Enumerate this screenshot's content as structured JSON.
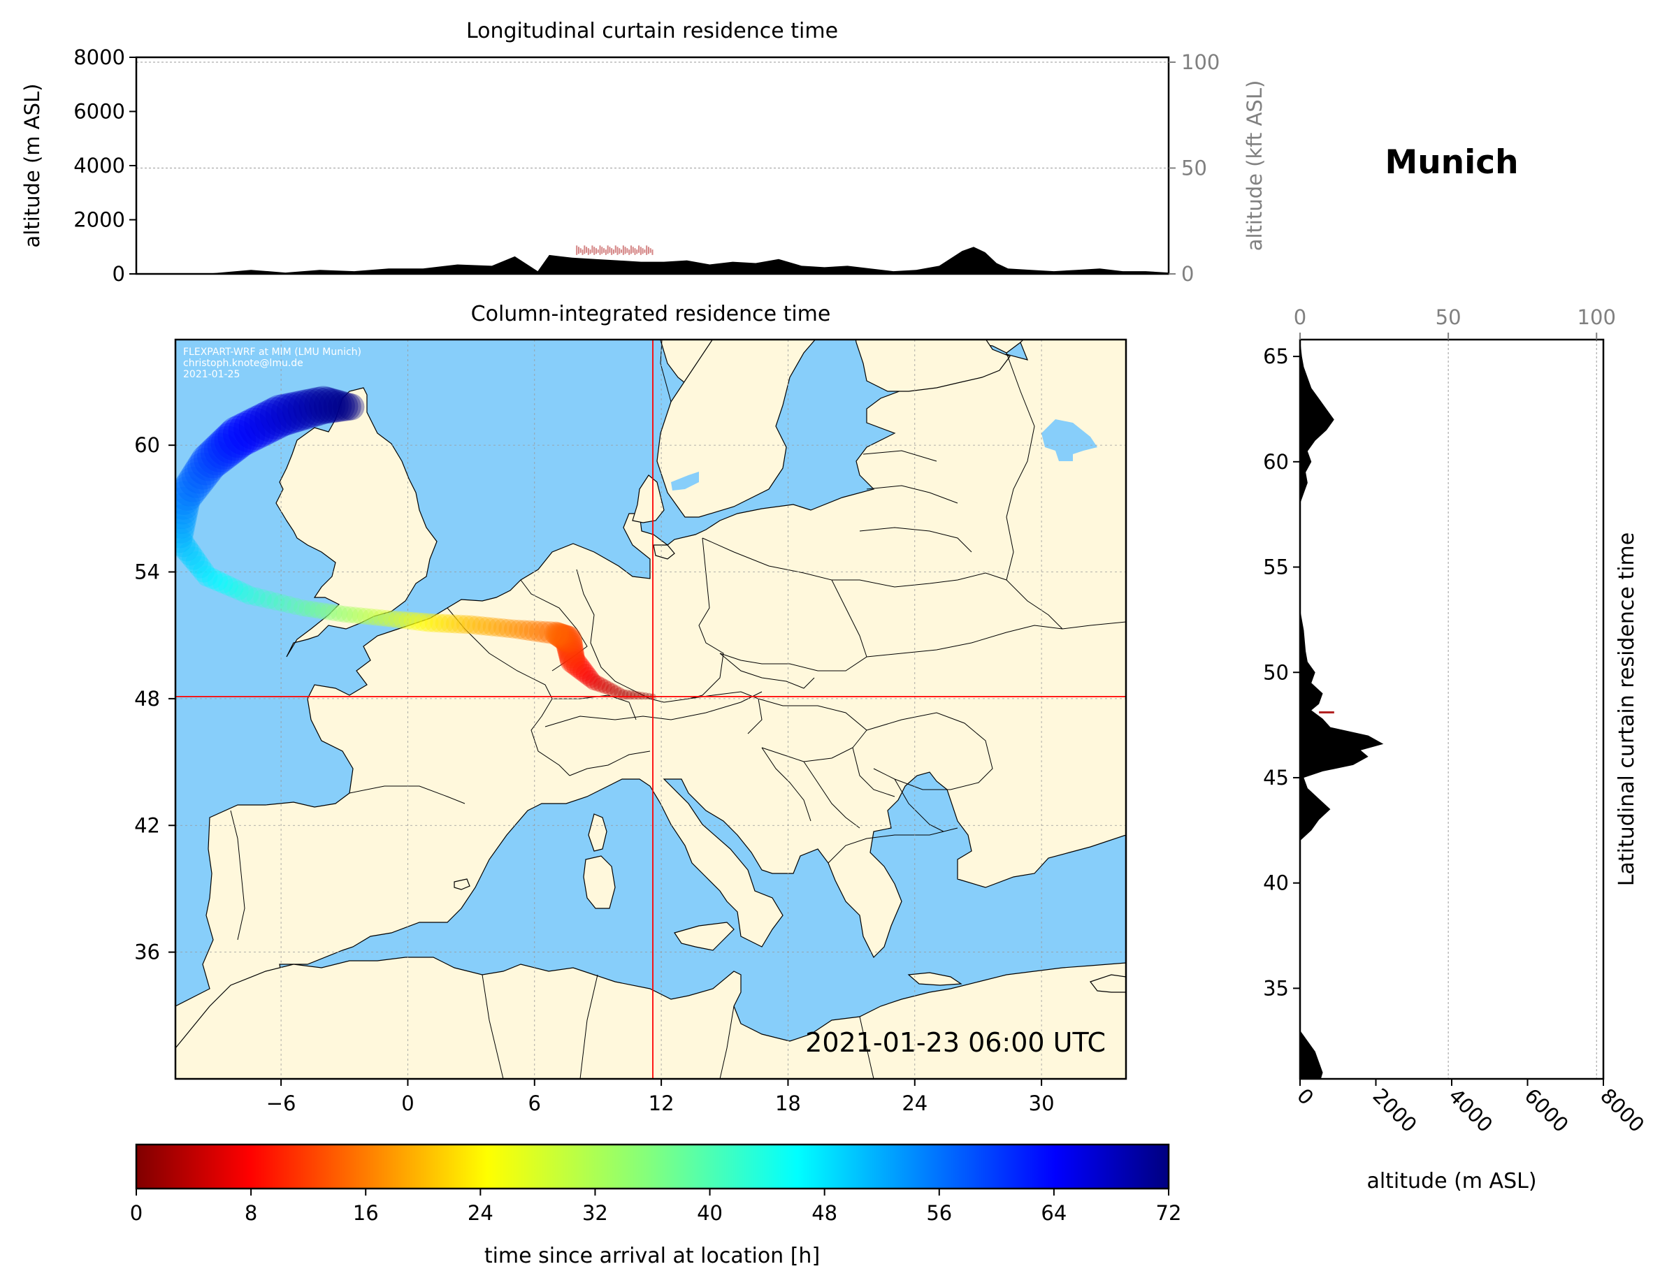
{
  "figure": {
    "location_title": "Munich",
    "timestamp": "2021-01-23 06:00 UTC",
    "credits": [
      "FLEXPART-WRF at MIM (LMU Munich)",
      "christoph.knote@lmu.de",
      "2021-01-25"
    ],
    "colors": {
      "ocean": "#87CEFA",
      "land": "#FFF8DC",
      "terrain": "#000000",
      "crosshair": "#FF0000",
      "secondary_axis": "#808080"
    }
  },
  "chart_data": [
    {
      "id": "longitudinal",
      "type": "area",
      "title": "Longitudinal curtain residence time",
      "ylabel": "altitude (m ASL)",
      "ylabel_right": "altitude (kft ASL)",
      "ylim": [
        0,
        8000
      ],
      "yticks": [
        0,
        2000,
        4000,
        6000,
        8000
      ],
      "yticks_right": [
        0,
        50,
        100
      ],
      "xlim": [
        -11,
        34
      ],
      "terrain": {
        "name": "terrain",
        "x": [
          -11,
          -8,
          -6,
          -4.5,
          -3,
          -1.5,
          0,
          1.5,
          3,
          4.5,
          5.5,
          6.5,
          7,
          7.5,
          8,
          9,
          10,
          11,
          12,
          13,
          14,
          15,
          16,
          17,
          18,
          19,
          20,
          21,
          22,
          23,
          24,
          25,
          25.5,
          26,
          26.5,
          27,
          28,
          29,
          30,
          31,
          32,
          33,
          34
        ],
        "y": [
          0,
          0,
          150,
          50,
          150,
          100,
          200,
          200,
          350,
          300,
          650,
          100,
          700,
          650,
          600,
          550,
          500,
          450,
          450,
          500,
          350,
          450,
          400,
          550,
          300,
          250,
          300,
          200,
          100,
          150,
          300,
          850,
          1000,
          800,
          400,
          200,
          150,
          100,
          150,
          200,
          100,
          100,
          50
        ]
      },
      "residence": {
        "name": "residence time",
        "x_range": [
          8.2,
          11.5
        ],
        "altitude_range": [
          700,
          1050
        ],
        "color": "#B22222"
      }
    },
    {
      "id": "column",
      "type": "heatmap",
      "title": "Column-integrated residence time",
      "xlim": [
        -11,
        34
      ],
      "ylim": [
        30,
        65
      ],
      "xticks": [
        -6,
        0,
        6,
        12,
        18,
        24,
        30
      ],
      "yticks": [
        36,
        42,
        48,
        54,
        60
      ],
      "crosshair": {
        "lon": 11.6,
        "lat": 48.1
      },
      "trajectory": {
        "lon": [
          11.6,
          10.2,
          8.8,
          7.8,
          7.6,
          7.0,
          5.0,
          3.0,
          1.0,
          -1.0,
          -3.0,
          -5.0,
          -7.5,
          -9.5,
          -10.8,
          -10.6,
          -9.4,
          -8.0,
          -6.0,
          -4.0,
          -2.5
        ],
        "lat": [
          48.1,
          48.2,
          48.8,
          49.8,
          50.8,
          51.1,
          51.3,
          51.5,
          51.6,
          51.8,
          52.0,
          52.3,
          52.9,
          53.8,
          55.5,
          57.5,
          59.2,
          60.4,
          61.4,
          61.9,
          61.8
        ],
        "hours": [
          0,
          3,
          7,
          11,
          14,
          16,
          19,
          22,
          26,
          30,
          34,
          38,
          42,
          46,
          50,
          54,
          58,
          62,
          66,
          70,
          72
        ],
        "width": [
          0.3,
          0.5,
          0.8,
          1.2,
          1.3,
          1.1,
          0.9,
          0.9,
          0.9,
          0.8,
          0.8,
          0.8,
          0.9,
          1.0,
          1.2,
          1.6,
          1.8,
          2.0,
          2.0,
          1.8,
          1.2
        ]
      }
    },
    {
      "id": "latitudinal",
      "type": "area",
      "title": "Latitudinal curtain residence time",
      "xlabel": "altitude (m ASL)",
      "xlim": [
        0,
        8000
      ],
      "xticks": [
        0,
        2000,
        4000,
        6000,
        8000
      ],
      "xticks_top": [
        0,
        50,
        100
      ],
      "ylim": [
        30.7,
        65.8
      ],
      "yticks": [
        35,
        40,
        45,
        50,
        55,
        60,
        65
      ],
      "terrain": {
        "name": "terrain",
        "lat": [
          30.7,
          31.0,
          31.5,
          32.0,
          32.5,
          33.0,
          35,
          37,
          40,
          42.0,
          42.5,
          43.0,
          43.5,
          44.0,
          44.5,
          45.0,
          45.3,
          45.6,
          46.0,
          46.3,
          46.6,
          47.0,
          47.4,
          47.8,
          48.2,
          48.5,
          49.0,
          49.5,
          50.0,
          50.5,
          51.0,
          52.0,
          52.5,
          53.0,
          55,
          57,
          58.0,
          58.5,
          59.0,
          59.5,
          60.0,
          60.5,
          61.0,
          61.5,
          62.0,
          62.5,
          63.0,
          63.5,
          64.0,
          64.5,
          65.0,
          65.8
        ],
        "alt": [
          550,
          600,
          500,
          400,
          200,
          0,
          0,
          0,
          0,
          0,
          300,
          500,
          800,
          500,
          200,
          100,
          600,
          1400,
          1800,
          1600,
          2200,
          1800,
          800,
          600,
          300,
          500,
          600,
          300,
          400,
          200,
          150,
          100,
          50,
          0,
          0,
          0,
          0,
          100,
          200,
          150,
          300,
          200,
          400,
          700,
          900,
          700,
          500,
          300,
          200,
          100,
          50,
          0
        ]
      },
      "residence": {
        "name": "residence time",
        "lat": 48.1,
        "altitude_range": [
          500,
          900
        ],
        "color": "#B22222"
      }
    },
    {
      "id": "colorbar",
      "type": "colorbar",
      "xlabel": "time since arrival at location [h]",
      "range": [
        0,
        72
      ],
      "ticks": [
        0,
        8,
        16,
        24,
        32,
        40,
        48,
        56,
        64,
        72
      ],
      "colormap": "jet_r"
    }
  ]
}
